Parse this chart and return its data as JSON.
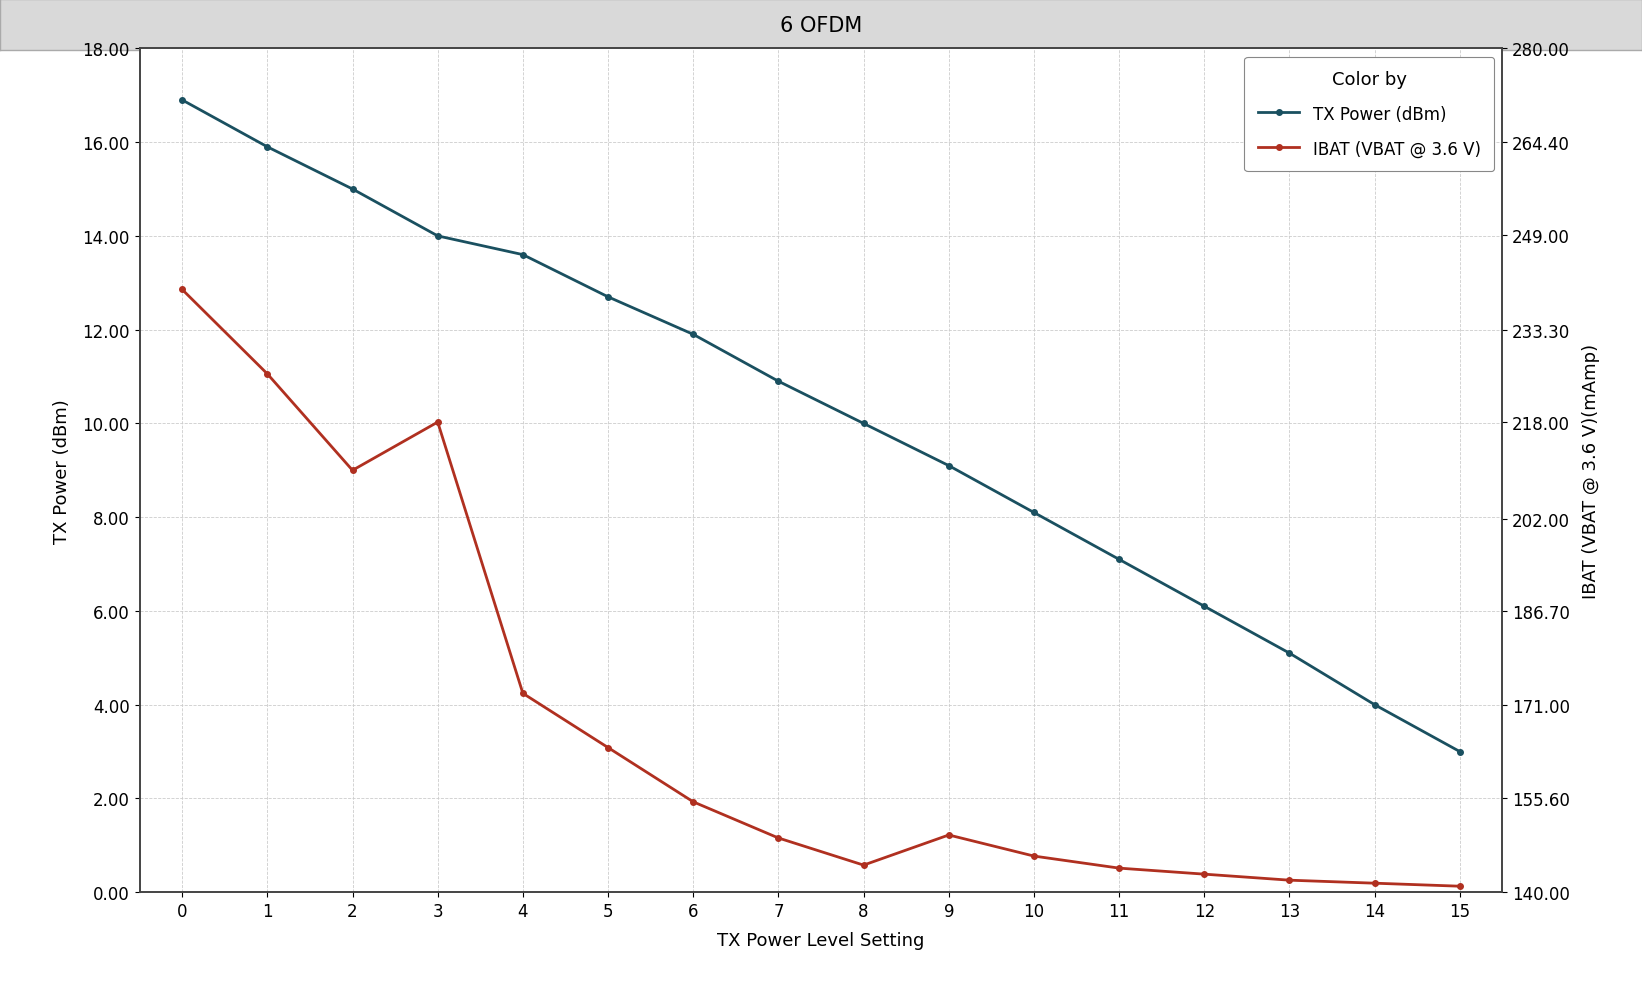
{
  "title": "6 OFDM",
  "xlabel": "TX Power Level Setting",
  "ylabel_left": "TX Power (dBm)",
  "ylabel_right": "IBAT (VBAT @ 3.6 V)(mAmp)",
  "legend_title": "Color by",
  "legend_entries": [
    "TX Power (dBm)",
    "IBAT (VBAT @ 3.6 V)"
  ],
  "x": [
    0,
    1,
    2,
    3,
    4,
    5,
    6,
    7,
    8,
    9,
    10,
    11,
    12,
    13,
    14,
    15
  ],
  "tx_power": [
    16.9,
    15.9,
    15.0,
    14.0,
    13.6,
    12.7,
    11.9,
    10.9,
    10.0,
    9.1,
    8.1,
    7.1,
    6.1,
    5.1,
    4.0,
    3.0
  ],
  "ibat": [
    240.0,
    226.0,
    210.0,
    218.0,
    173.0,
    164.0,
    155.0,
    149.0,
    144.5,
    149.5,
    146.0,
    144.0,
    143.0,
    142.0,
    141.5,
    141.0
  ],
  "tx_color": "#1a5060",
  "ibat_color": "#b03020",
  "left_ylim": [
    0.0,
    18.0
  ],
  "right_ylim": [
    140.0,
    280.0
  ],
  "left_yticks": [
    0.0,
    2.0,
    4.0,
    6.0,
    8.0,
    10.0,
    12.0,
    14.0,
    16.0,
    18.0
  ],
  "right_yticks": [
    140.0,
    155.6,
    171.0,
    186.7,
    202.0,
    218.0,
    233.3,
    249.0,
    264.4,
    280.0
  ],
  "right_ytick_labels": [
    "140.00",
    "155.60",
    "171.00",
    "186.70",
    "202.00",
    "218.00",
    "233.30",
    "249.00",
    "264.40",
    "280.00"
  ],
  "xticks": [
    0,
    1,
    2,
    3,
    4,
    5,
    6,
    7,
    8,
    9,
    10,
    11,
    12,
    13,
    14,
    15
  ],
  "grid_color": "#cccccc",
  "bg_color": "#ffffff",
  "title_bg_color": "#d9d9d9",
  "title_border_color": "#aaaaaa",
  "spine_color": "#444444",
  "marker": "o",
  "markersize": 4,
  "linewidth": 2.0,
  "title_fontsize": 15,
  "axis_label_fontsize": 13,
  "tick_fontsize": 12,
  "legend_fontsize": 12,
  "legend_title_fontsize": 13
}
